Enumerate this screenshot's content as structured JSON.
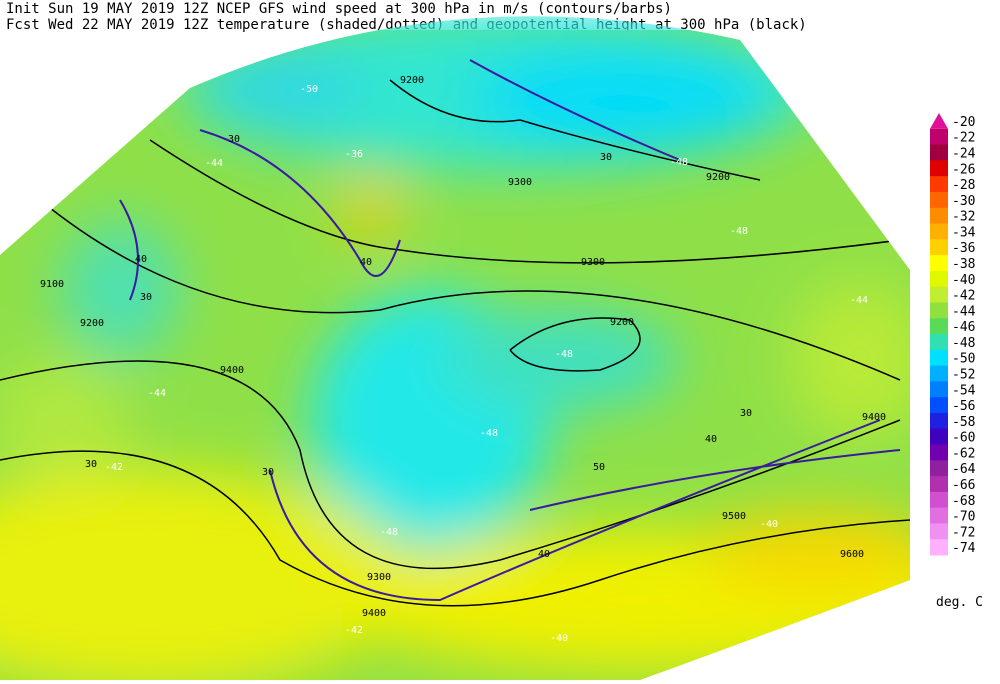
{
  "header": {
    "line1": "Init  Sun 19 MAY 2019 12Z  NCEP GFS wind speed at 300 hPa in m/s (contours/barbs)",
    "line2": "Fcst Wed 22 MAY 2019 12Z  temperature (shaded/dotted) and geopotential height at 300 hPa (black)"
  },
  "colorbar": {
    "unit": "deg. C",
    "levels": [
      {
        "label": "-20",
        "color": "#e0109a"
      },
      {
        "label": "-22",
        "color": "#c0006c"
      },
      {
        "label": "-24",
        "color": "#a00040"
      },
      {
        "label": "-26",
        "color": "#e00000"
      },
      {
        "label": "-28",
        "color": "#ff3a00"
      },
      {
        "label": "-30",
        "color": "#ff6600"
      },
      {
        "label": "-32",
        "color": "#ff8c00"
      },
      {
        "label": "-34",
        "color": "#ffb000"
      },
      {
        "label": "-36",
        "color": "#ffd000"
      },
      {
        "label": "-38",
        "color": "#ffff00"
      },
      {
        "label": "-40",
        "color": "#e0f800"
      },
      {
        "label": "-42",
        "color": "#c0ee30"
      },
      {
        "label": "-44",
        "color": "#90e040"
      },
      {
        "label": "-46",
        "color": "#58dc58"
      },
      {
        "label": "-48",
        "color": "#30e0b0"
      },
      {
        "label": "-50",
        "color": "#00e0ff"
      },
      {
        "label": "-52",
        "color": "#00b0ff"
      },
      {
        "label": "-54",
        "color": "#0080ff"
      },
      {
        "label": "-56",
        "color": "#0050ff"
      },
      {
        "label": "-58",
        "color": "#2020e0"
      },
      {
        "label": "-60",
        "color": "#4000c0"
      },
      {
        "label": "-62",
        "color": "#7000b0"
      },
      {
        "label": "-64",
        "color": "#9020a0"
      },
      {
        "label": "-66",
        "color": "#b030b0"
      },
      {
        "label": "-68",
        "color": "#d050d0"
      },
      {
        "label": "-70",
        "color": "#e070e0"
      },
      {
        "label": "-72",
        "color": "#f090f0"
      },
      {
        "label": "-74",
        "color": "#ffb0ff"
      }
    ]
  },
  "map": {
    "labels": [
      "9200",
      "9300",
      "9300",
      "9200",
      "9100",
      "9200",
      "9400",
      "9300",
      "9400",
      "9500",
      "9600",
      "9400",
      "9200",
      "30",
      "40",
      "30",
      "40",
      "30",
      "30",
      "40",
      "50",
      "40",
      "30",
      "30",
      "-44",
      "-48",
      "-48",
      "-48",
      "-48",
      "-44",
      "-42",
      "-44",
      "-40",
      "-42",
      "-40",
      "-50",
      "-48",
      "-36"
    ]
  }
}
